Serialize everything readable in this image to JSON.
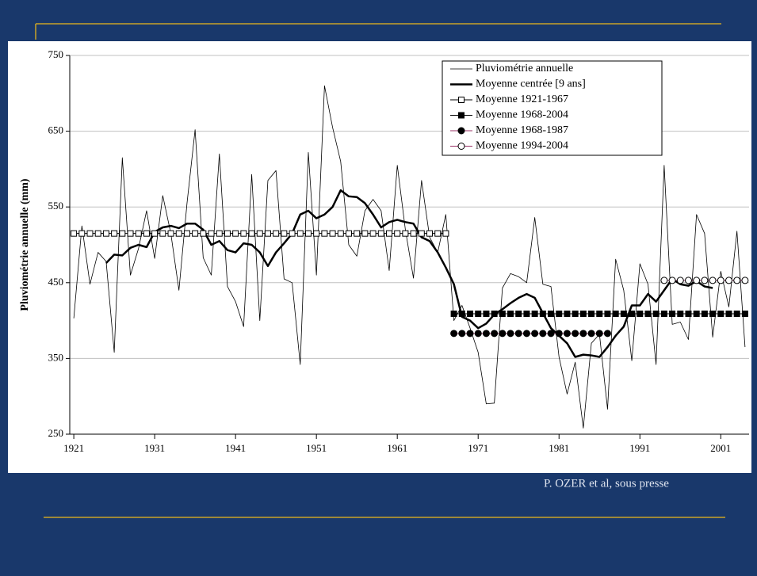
{
  "chart_data": {
    "type": "line",
    "y_label": "Pluviométrie annuelle (mm)",
    "caption": "P. OZER et al, sous presse",
    "x": [
      1921,
      1922,
      1923,
      1924,
      1925,
      1926,
      1927,
      1928,
      1929,
      1930,
      1931,
      1932,
      1933,
      1934,
      1935,
      1936,
      1937,
      1938,
      1939,
      1940,
      1941,
      1942,
      1943,
      1944,
      1945,
      1946,
      1947,
      1948,
      1949,
      1950,
      1951,
      1952,
      1953,
      1954,
      1955,
      1956,
      1957,
      1958,
      1959,
      1960,
      1961,
      1962,
      1963,
      1964,
      1965,
      1966,
      1967,
      1968,
      1969,
      1970,
      1971,
      1972,
      1973,
      1974,
      1975,
      1976,
      1977,
      1978,
      1979,
      1980,
      1981,
      1982,
      1983,
      1984,
      1985,
      1986,
      1987,
      1988,
      1989,
      1990,
      1991,
      1992,
      1993,
      1994,
      1995,
      1996,
      1997,
      1998,
      1999,
      2000,
      2001,
      2002,
      2003,
      2004
    ],
    "xlim": [
      1920.5,
      2004.5
    ],
    "xticks": [
      1921,
      1931,
      1941,
      1951,
      1961,
      1971,
      1981,
      1991,
      2001
    ],
    "ylim": [
      250,
      750
    ],
    "yticks": [
      250,
      350,
      450,
      550,
      650,
      750
    ],
    "grid": true,
    "series": [
      {
        "name": "Pluviométrie annuelle",
        "color": "#000000",
        "width": 0.8,
        "marker": "none",
        "values": [
          403,
          525,
          448,
          490,
          478,
          358,
          615,
          460,
          495,
          545,
          482,
          565,
          515,
          440,
          555,
          652,
          483,
          460,
          620,
          445,
          425,
          392,
          593,
          400,
          585,
          598,
          455,
          450,
          342,
          622,
          460,
          710,
          655,
          610,
          500,
          485,
          545,
          560,
          545,
          466,
          605,
          520,
          456,
          585,
          510,
          490,
          540,
          400,
          420,
          390,
          358,
          290,
          291,
          443,
          462,
          458,
          450,
          536,
          448,
          445,
          352,
          303,
          345,
          258,
          370,
          382,
          283,
          481,
          440,
          347,
          475,
          448,
          342,
          605,
          395,
          398,
          375,
          540,
          515,
          378,
          465,
          418,
          518,
          365
        ]
      },
      {
        "name": "Moyenne centrée [9 ans]",
        "color": "#000000",
        "width": 2.5,
        "marker": "none",
        "values": [
          null,
          null,
          null,
          null,
          476,
          487,
          486,
          496,
          500,
          497,
          517,
          523,
          525,
          522,
          528,
          528,
          520,
          500,
          505,
          493,
          490,
          502,
          500,
          490,
          472,
          490,
          502,
          515,
          540,
          545,
          535,
          540,
          550,
          572,
          564,
          563,
          555,
          540,
          523,
          530,
          533,
          530,
          528,
          510,
          505,
          490,
          470,
          448,
          405,
          400,
          390,
          396,
          408,
          415,
          423,
          430,
          435,
          430,
          410,
          390,
          380,
          370,
          352,
          355,
          354,
          352,
          365,
          380,
          392,
          420,
          420,
          435,
          425,
          440,
          455,
          448,
          446,
          452,
          445,
          443,
          null,
          null,
          null,
          null
        ]
      },
      {
        "name": "Moyenne 1921-1967",
        "color": "#000000",
        "width": 1,
        "marker": "square-open",
        "values": [
          515,
          515,
          515,
          515,
          515,
          515,
          515,
          515,
          515,
          515,
          515,
          515,
          515,
          515,
          515,
          515,
          515,
          515,
          515,
          515,
          515,
          515,
          515,
          515,
          515,
          515,
          515,
          515,
          515,
          515,
          515,
          515,
          515,
          515,
          515,
          515,
          515,
          515,
          515,
          515,
          515,
          515,
          515,
          515,
          515,
          515,
          515,
          null,
          null,
          null,
          null,
          null,
          null,
          null,
          null,
          null,
          null,
          null,
          null,
          null,
          null,
          null,
          null,
          null,
          null,
          null,
          null,
          null,
          null,
          null,
          null,
          null,
          null,
          null,
          null,
          null,
          null,
          null,
          null,
          null,
          null,
          null,
          null,
          null
        ]
      },
      {
        "name": "Moyenne 1968-2004",
        "color": "#000000",
        "width": 1,
        "marker": "square",
        "values": [
          null,
          null,
          null,
          null,
          null,
          null,
          null,
          null,
          null,
          null,
          null,
          null,
          null,
          null,
          null,
          null,
          null,
          null,
          null,
          null,
          null,
          null,
          null,
          null,
          null,
          null,
          null,
          null,
          null,
          null,
          null,
          null,
          null,
          null,
          null,
          null,
          null,
          null,
          null,
          null,
          null,
          null,
          null,
          null,
          null,
          null,
          null,
          409,
          409,
          409,
          409,
          409,
          409,
          409,
          409,
          409,
          409,
          409,
          409,
          409,
          409,
          409,
          409,
          409,
          409,
          409,
          409,
          409,
          409,
          409,
          409,
          409,
          409,
          409,
          409,
          409,
          409,
          409,
          409,
          409,
          409,
          409,
          409,
          409
        ]
      },
      {
        "name": "Moyenne 1968-1987",
        "color": "#000000",
        "line_color": "#993366",
        "width": 1,
        "marker": "circle",
        "values": [
          null,
          null,
          null,
          null,
          null,
          null,
          null,
          null,
          null,
          null,
          null,
          null,
          null,
          null,
          null,
          null,
          null,
          null,
          null,
          null,
          null,
          null,
          null,
          null,
          null,
          null,
          null,
          null,
          null,
          null,
          null,
          null,
          null,
          null,
          null,
          null,
          null,
          null,
          null,
          null,
          null,
          null,
          null,
          null,
          null,
          null,
          null,
          383,
          383,
          383,
          383,
          383,
          383,
          383,
          383,
          383,
          383,
          383,
          383,
          383,
          383,
          383,
          383,
          383,
          383,
          383,
          383,
          null,
          null,
          null,
          null,
          null,
          null,
          null,
          null,
          null,
          null,
          null,
          null,
          null,
          null,
          null,
          null,
          null
        ]
      },
      {
        "name": "Moyenne 1994-2004",
        "color": "#000000",
        "line_color": "#993366",
        "width": 1,
        "marker": "circle-open",
        "values": [
          null,
          null,
          null,
          null,
          null,
          null,
          null,
          null,
          null,
          null,
          null,
          null,
          null,
          null,
          null,
          null,
          null,
          null,
          null,
          null,
          null,
          null,
          null,
          null,
          null,
          null,
          null,
          null,
          null,
          null,
          null,
          null,
          null,
          null,
          null,
          null,
          null,
          null,
          null,
          null,
          null,
          null,
          null,
          null,
          null,
          null,
          null,
          null,
          null,
          null,
          null,
          null,
          null,
          null,
          null,
          null,
          null,
          null,
          null,
          null,
          null,
          null,
          null,
          null,
          null,
          null,
          null,
          null,
          null,
          null,
          null,
          null,
          null,
          453,
          453,
          453,
          453,
          453,
          453,
          453,
          453,
          453,
          453,
          453
        ]
      }
    ]
  }
}
